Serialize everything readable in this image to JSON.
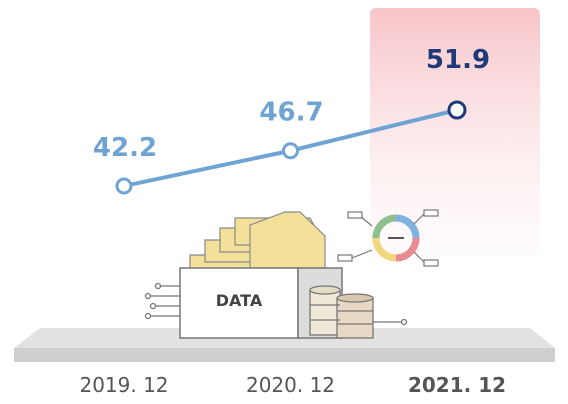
{
  "chart_data": {
    "type": "line",
    "categories": [
      "2019. 12",
      "2020. 12",
      "2021. 12"
    ],
    "series": [
      {
        "name": null,
        "color": "#6fa3d3",
        "values": [
          42.2,
          46.7,
          51.9
        ]
      }
    ],
    "annotation": "DATA"
  }
}
